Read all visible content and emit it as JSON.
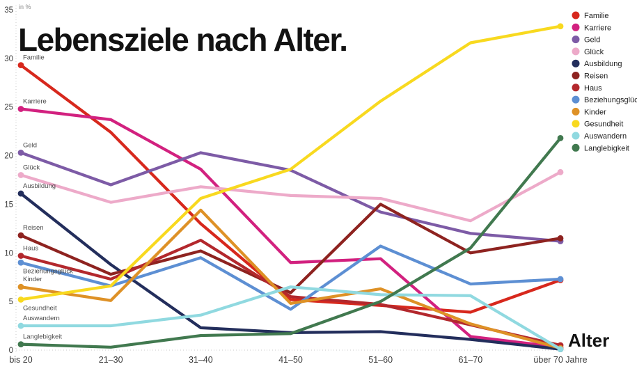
{
  "title": "Lebensziele nach Alter.",
  "y_axis_unit_label": "in %",
  "x_axis_title": "Alter",
  "chart_data": {
    "type": "line",
    "title": "Lebensziele nach Alter.",
    "xlabel": "Alter",
    "ylabel": "in %",
    "ylim": [
      0,
      35
    ],
    "y_tick_labels": [
      "0",
      "5",
      "10",
      "15",
      "20",
      "25",
      "30",
      "35"
    ],
    "grid": false,
    "legend_position": "top-right",
    "categories": [
      "bis 20",
      "21–30",
      "31–40",
      "41–50",
      "51–60",
      "61–70",
      "über 70 Jahre"
    ],
    "series": [
      {
        "name": "Familie",
        "color": "#d7281d",
        "label_side": "above",
        "values": [
          29.3,
          22.4,
          13.0,
          5.2,
          4.6,
          3.9,
          7.2
        ]
      },
      {
        "name": "Karriere",
        "color": "#d2217f",
        "label_side": "above",
        "values": [
          24.8,
          23.7,
          18.6,
          9.0,
          9.4,
          1.4,
          0.3
        ]
      },
      {
        "name": "Geld",
        "color": "#7d5ba6",
        "label_side": "above",
        "values": [
          20.3,
          17.0,
          20.3,
          18.5,
          14.2,
          12.0,
          11.2
        ]
      },
      {
        "name": "Glück",
        "color": "#edaac9",
        "label_side": "above",
        "values": [
          18.0,
          15.2,
          16.8,
          15.9,
          15.6,
          13.3,
          18.3
        ]
      },
      {
        "name": "Ausbildung",
        "color": "#232e5c",
        "label_side": "above",
        "values": [
          16.1,
          8.8,
          2.3,
          1.8,
          1.9,
          1.1,
          0.1
        ]
      },
      {
        "name": "Reisen",
        "color": "#8e2320",
        "label_side": "above",
        "values": [
          11.8,
          7.8,
          10.2,
          5.9,
          15.0,
          10.0,
          11.5
        ]
      },
      {
        "name": "Haus",
        "color": "#b3282d",
        "label_side": "above",
        "values": [
          9.7,
          7.3,
          11.3,
          5.5,
          4.7,
          2.6,
          0.5
        ]
      },
      {
        "name": "Beziehungsglück",
        "color": "#5d8fd3",
        "label_side": "below",
        "values": [
          9.0,
          6.6,
          9.5,
          4.2,
          10.7,
          6.8,
          7.3
        ]
      },
      {
        "name": "Kinder",
        "color": "#de9126",
        "label_side": "above",
        "values": [
          6.5,
          5.1,
          14.4,
          4.8,
          6.3,
          2.7,
          0.2
        ]
      },
      {
        "name": "Gesundheit",
        "color": "#f8d91f",
        "label_side": "below",
        "values": [
          5.2,
          6.6,
          15.6,
          18.6,
          25.6,
          31.6,
          33.3
        ]
      },
      {
        "name": "Auswandern",
        "color": "#90d9e0",
        "label_side": "above",
        "values": [
          2.5,
          2.5,
          3.6,
          6.5,
          5.7,
          5.6,
          0.1
        ]
      },
      {
        "name": "Langlebigkeit",
        "color": "#41794f",
        "label_side": "above",
        "values": [
          0.6,
          0.3,
          1.5,
          1.7,
          5.0,
          10.5,
          21.8
        ]
      }
    ]
  }
}
